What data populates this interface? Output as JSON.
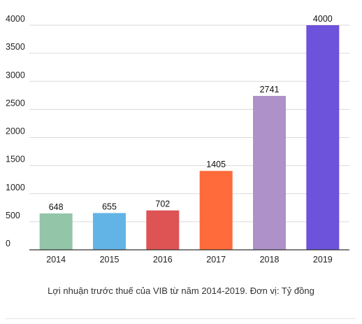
{
  "chart_data": {
    "type": "bar",
    "categories": [
      "2014",
      "2015",
      "2016",
      "2017",
      "2018",
      "2019"
    ],
    "values": [
      648,
      655,
      702,
      1405,
      2741,
      4000
    ],
    "colors": [
      "#93c5a8",
      "#63b4e6",
      "#de5454",
      "#ff6b3a",
      "#ae91c9",
      "#6d52db"
    ],
    "data_labels": [
      "648",
      "655",
      "702",
      "1405",
      "2741",
      "4000"
    ],
    "yticks": [
      "0",
      "500",
      "1000",
      "1500",
      "2000",
      "2500",
      "3000",
      "3500",
      "4000"
    ],
    "ylim": [
      0,
      4000
    ],
    "grid": true,
    "title": "",
    "xlabel": "",
    "ylabel": ""
  },
  "caption": "Lợi nhuận trước thuế của VIB từ năm 2014-2019. Đơn vị: Tỷ đồng"
}
